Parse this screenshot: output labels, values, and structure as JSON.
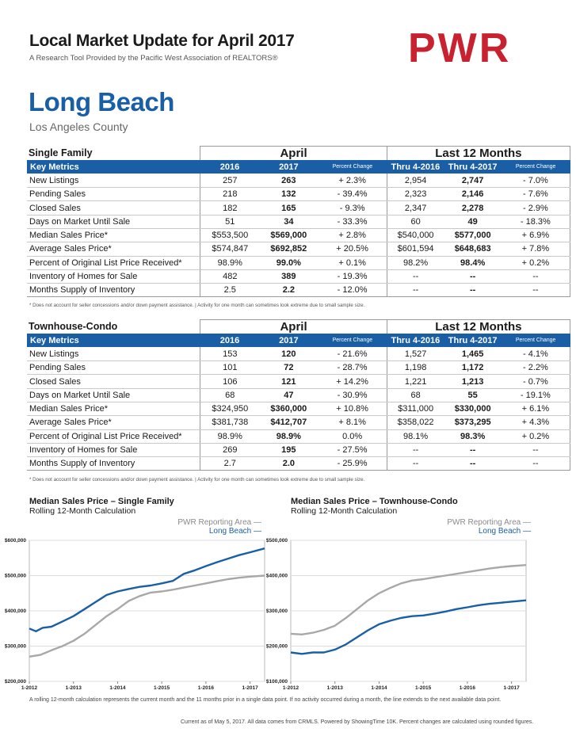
{
  "header": {
    "title": "Local Market Update for April 2017",
    "subtitle": "A Research Tool Provided by the Pacific West Association of REALTORS®",
    "logo_text": "PWR",
    "city": "Long Beach",
    "county": "Los Angeles County",
    "brand_color": "#c8212f",
    "accent_color": "#1a5fa5"
  },
  "tables": [
    {
      "section": "Single Family",
      "group_month": "April",
      "group_12": "Last 12 Months",
      "cols": [
        "Key Metrics",
        "2016",
        "2017",
        "Percent Change",
        "Thru 4-2016",
        "Thru 4-2017",
        "Percent Change"
      ],
      "rows": [
        [
          "New Listings",
          "257",
          "263",
          "+ 2.3%",
          "2,954",
          "2,747",
          "- 7.0%"
        ],
        [
          "Pending Sales",
          "218",
          "132",
          "- 39.4%",
          "2,323",
          "2,146",
          "- 7.6%"
        ],
        [
          "Closed Sales",
          "182",
          "165",
          "- 9.3%",
          "2,347",
          "2,278",
          "- 2.9%"
        ],
        [
          "Days on Market Until Sale",
          "51",
          "34",
          "- 33.3%",
          "60",
          "49",
          "- 18.3%"
        ],
        [
          "Median Sales Price*",
          "$553,500",
          "$569,000",
          "+ 2.8%",
          "$540,000",
          "$577,000",
          "+ 6.9%"
        ],
        [
          "Average Sales Price*",
          "$574,847",
          "$692,852",
          "+ 20.5%",
          "$601,594",
          "$648,683",
          "+ 7.8%"
        ],
        [
          "Percent of Original List Price Received*",
          "98.9%",
          "99.0%",
          "+ 0.1%",
          "98.2%",
          "98.4%",
          "+ 0.2%"
        ],
        [
          "Inventory of Homes for Sale",
          "482",
          "389",
          "- 19.3%",
          "--",
          "--",
          "--"
        ],
        [
          "Months Supply of Inventory",
          "2.5",
          "2.2",
          "- 12.0%",
          "--",
          "--",
          "--"
        ]
      ],
      "note": "* Does not account for seller concessions and/or down payment assistance.  |  Activity for one month can sometimes look extreme due to small sample size."
    },
    {
      "section": "Townhouse-Condo",
      "group_month": "April",
      "group_12": "Last 12 Months",
      "cols": [
        "Key Metrics",
        "2016",
        "2017",
        "Percent Change",
        "Thru 4-2016",
        "Thru 4-2017",
        "Percent Change"
      ],
      "rows": [
        [
          "New Listings",
          "153",
          "120",
          "- 21.6%",
          "1,527",
          "1,465",
          "- 4.1%"
        ],
        [
          "Pending Sales",
          "101",
          "72",
          "- 28.7%",
          "1,198",
          "1,172",
          "- 2.2%"
        ],
        [
          "Closed Sales",
          "106",
          "121",
          "+ 14.2%",
          "1,221",
          "1,213",
          "- 0.7%"
        ],
        [
          "Days on Market Until Sale",
          "68",
          "47",
          "- 30.9%",
          "68",
          "55",
          "- 19.1%"
        ],
        [
          "Median Sales Price*",
          "$324,950",
          "$360,000",
          "+ 10.8%",
          "$311,000",
          "$330,000",
          "+ 6.1%"
        ],
        [
          "Average Sales Price*",
          "$381,738",
          "$412,707",
          "+ 8.1%",
          "$358,022",
          "$373,295",
          "+ 4.3%"
        ],
        [
          "Percent of Original List Price Received*",
          "98.9%",
          "98.9%",
          "0.0%",
          "98.1%",
          "98.3%",
          "+ 0.2%"
        ],
        [
          "Inventory of Homes for Sale",
          "269",
          "195",
          "- 27.5%",
          "--",
          "--",
          "--"
        ],
        [
          "Months Supply of Inventory",
          "2.7",
          "2.0",
          "- 25.9%",
          "--",
          "--",
          "--"
        ]
      ],
      "note": "* Does not account for seller concessions and/or down payment assistance.  |  Activity for one month can sometimes look extreme due to small sample size."
    }
  ],
  "charts_text": [
    {
      "title": "Median Sales Price – Single Family",
      "subtitle": "Rolling 12-Month Calculation",
      "legend_gray": "PWR Reporting Area  —",
      "legend_blue": "Long Beach  —"
    },
    {
      "title": "Median Sales Price – Townhouse-Condo",
      "subtitle": "Rolling 12-Month Calculation",
      "legend_gray": "PWR Reporting Area  —",
      "legend_blue": "Long Beach  —"
    }
  ],
  "chart_data": [
    {
      "type": "line",
      "title": "Median Sales Price – Single Family",
      "subtitle": "Rolling 12-Month Calculation",
      "x_ticks": [
        "1-2012",
        "1-2013",
        "1-2014",
        "1-2015",
        "1-2016",
        "1-2017"
      ],
      "y_ticks": [
        "$200,000",
        "$300,000",
        "$400,000",
        "$500,000",
        "$600,000"
      ],
      "ylim": [
        200000,
        600000
      ],
      "xlim": [
        2012.0,
        2017.33
      ],
      "grid": true,
      "legend": "top-right",
      "series": [
        {
          "name": "PWR Reporting Area",
          "color": "#a8a8a8",
          "points": [
            [
              2012.0,
              270000
            ],
            [
              2012.25,
              275000
            ],
            [
              2012.5,
              288000
            ],
            [
              2012.75,
              300000
            ],
            [
              2013.0,
              315000
            ],
            [
              2013.25,
              335000
            ],
            [
              2013.5,
              360000
            ],
            [
              2013.75,
              385000
            ],
            [
              2014.0,
              405000
            ],
            [
              2014.25,
              428000
            ],
            [
              2014.5,
              442000
            ],
            [
              2014.75,
              452000
            ],
            [
              2015.0,
              455000
            ],
            [
              2015.25,
              460000
            ],
            [
              2015.5,
              466000
            ],
            [
              2015.75,
              472000
            ],
            [
              2016.0,
              478000
            ],
            [
              2016.25,
              484000
            ],
            [
              2016.5,
              490000
            ],
            [
              2016.75,
              494000
            ],
            [
              2017.0,
              497000
            ],
            [
              2017.33,
              500000
            ]
          ]
        },
        {
          "name": "Long Beach",
          "color": "#1a5fa5",
          "points": [
            [
              2012.0,
              350000
            ],
            [
              2012.15,
              342000
            ],
            [
              2012.3,
              352000
            ],
            [
              2012.5,
              355000
            ],
            [
              2012.75,
              370000
            ],
            [
              2013.0,
              385000
            ],
            [
              2013.25,
              405000
            ],
            [
              2013.5,
              425000
            ],
            [
              2013.75,
              445000
            ],
            [
              2014.0,
              455000
            ],
            [
              2014.25,
              462000
            ],
            [
              2014.5,
              468000
            ],
            [
              2014.75,
              472000
            ],
            [
              2015.0,
              478000
            ],
            [
              2015.25,
              485000
            ],
            [
              2015.5,
              505000
            ],
            [
              2015.75,
              515000
            ],
            [
              2016.0,
              527000
            ],
            [
              2016.25,
              538000
            ],
            [
              2016.5,
              548000
            ],
            [
              2016.75,
              558000
            ],
            [
              2017.0,
              566000
            ],
            [
              2017.33,
              577000
            ]
          ]
        }
      ]
    },
    {
      "type": "line",
      "title": "Median Sales Price – Townhouse-Condo",
      "subtitle": "Rolling 12-Month Calculation",
      "x_ticks": [
        "1-2012",
        "1-2013",
        "1-2014",
        "1-2015",
        "1-2016",
        "1-2017"
      ],
      "y_ticks": [
        "$100,000",
        "$200,000",
        "$300,000",
        "$400,000",
        "$500,000"
      ],
      "ylim": [
        100000,
        500000
      ],
      "xlim": [
        2012.0,
        2017.33
      ],
      "grid": true,
      "legend": "top-right",
      "series": [
        {
          "name": "PWR Reporting Area",
          "color": "#a8a8a8",
          "points": [
            [
              2012.0,
              235000
            ],
            [
              2012.25,
              233000
            ],
            [
              2012.5,
              238000
            ],
            [
              2012.75,
              246000
            ],
            [
              2013.0,
              258000
            ],
            [
              2013.25,
              280000
            ],
            [
              2013.5,
              305000
            ],
            [
              2013.75,
              330000
            ],
            [
              2014.0,
              350000
            ],
            [
              2014.25,
              365000
            ],
            [
              2014.5,
              378000
            ],
            [
              2014.75,
              386000
            ],
            [
              2015.0,
              390000
            ],
            [
              2015.25,
              395000
            ],
            [
              2015.5,
              400000
            ],
            [
              2015.75,
              405000
            ],
            [
              2016.0,
              410000
            ],
            [
              2016.25,
              415000
            ],
            [
              2016.5,
              420000
            ],
            [
              2016.75,
              424000
            ],
            [
              2017.0,
              427000
            ],
            [
              2017.33,
              430000
            ]
          ]
        },
        {
          "name": "Long Beach",
          "color": "#1a5fa5",
          "points": [
            [
              2012.0,
              182000
            ],
            [
              2012.25,
              178000
            ],
            [
              2012.5,
              182000
            ],
            [
              2012.75,
              182000
            ],
            [
              2013.0,
              190000
            ],
            [
              2013.25,
              205000
            ],
            [
              2013.5,
              225000
            ],
            [
              2013.75,
              245000
            ],
            [
              2014.0,
              262000
            ],
            [
              2014.25,
              272000
            ],
            [
              2014.5,
              280000
            ],
            [
              2014.75,
              285000
            ],
            [
              2015.0,
              287000
            ],
            [
              2015.25,
              292000
            ],
            [
              2015.5,
              298000
            ],
            [
              2015.75,
              305000
            ],
            [
              2016.0,
              310000
            ],
            [
              2016.25,
              316000
            ],
            [
              2016.5,
              320000
            ],
            [
              2016.75,
              323000
            ],
            [
              2017.0,
              326000
            ],
            [
              2017.33,
              330000
            ]
          ]
        }
      ]
    }
  ],
  "footer": {
    "note": "A rolling 12-month calculation represents the current month and the 11 months prior in a single data point. If no activity occurred during a month, the line extends to the next available data point.",
    "credit": "Current as of May 5, 2017. All data comes from CRMLS. Powered by ShowingTime 10K. Percent changes are calculated using rounded figures."
  }
}
